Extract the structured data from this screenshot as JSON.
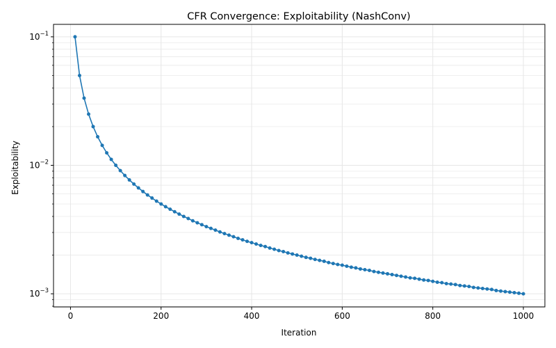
{
  "chart_data": {
    "type": "line",
    "title": "CFR Convergence: Exploitability (NashConv)",
    "xlabel": "Iteration",
    "ylabel": "Exploitability",
    "xlim": [
      -37.5,
      1047.5
    ],
    "ylim": [
      0.00079,
      0.125
    ],
    "yscale": "log",
    "grid": true,
    "legend": "none",
    "x_ticks": [
      0,
      200,
      400,
      600,
      800,
      1000
    ],
    "x_tick_labels": [
      "0",
      "200",
      "400",
      "600",
      "800",
      "1000"
    ],
    "y_ticks": [
      0.1,
      0.01,
      0.001
    ],
    "y_tick_labels": [
      {
        "base": "10",
        "exp": "−1"
      },
      {
        "base": "10",
        "exp": "−2"
      },
      {
        "base": "10",
        "exp": "−3"
      }
    ],
    "colors": {
      "line": "#1f77b4",
      "grid": "#e6e6e6",
      "axes": "#000000"
    },
    "series": [
      {
        "marker": "circle",
        "x": [
          10,
          20,
          30,
          40,
          50,
          60,
          70,
          80,
          90,
          100,
          110,
          120,
          130,
          140,
          150,
          160,
          170,
          180,
          190,
          200,
          210,
          220,
          230,
          240,
          250,
          260,
          270,
          280,
          290,
          300,
          310,
          320,
          330,
          340,
          350,
          360,
          370,
          380,
          390,
          400,
          410,
          420,
          430,
          440,
          450,
          460,
          470,
          480,
          490,
          500,
          510,
          520,
          530,
          540,
          550,
          560,
          570,
          580,
          590,
          600,
          610,
          620,
          630,
          640,
          650,
          660,
          670,
          680,
          690,
          700,
          710,
          720,
          730,
          740,
          750,
          760,
          770,
          780,
          790,
          800,
          810,
          820,
          830,
          840,
          850,
          860,
          870,
          880,
          890,
          900,
          910,
          920,
          930,
          940,
          950,
          960,
          970,
          980,
          990,
          1000
        ],
        "values": [
          0.1,
          0.05,
          0.03333,
          0.025,
          0.02,
          0.01667,
          0.01429,
          0.0125,
          0.01111,
          0.01,
          0.00909,
          0.00833,
          0.00769,
          0.00714,
          0.00667,
          0.00625,
          0.00588,
          0.00556,
          0.00526,
          0.005,
          0.00476,
          0.00455,
          0.00435,
          0.00417,
          0.004,
          0.00385,
          0.0037,
          0.00357,
          0.00345,
          0.00333,
          0.00323,
          0.00313,
          0.00303,
          0.00294,
          0.00286,
          0.00278,
          0.0027,
          0.00263,
          0.00256,
          0.0025,
          0.00244,
          0.00238,
          0.00233,
          0.00227,
          0.00222,
          0.00217,
          0.00213,
          0.00208,
          0.00204,
          0.002,
          0.00196,
          0.00192,
          0.00189,
          0.00185,
          0.00182,
          0.00179,
          0.00175,
          0.00172,
          0.00169,
          0.00167,
          0.00164,
          0.00161,
          0.00159,
          0.00156,
          0.00154,
          0.00152,
          0.00149,
          0.00147,
          0.00145,
          0.00143,
          0.00141,
          0.00139,
          0.00137,
          0.00135,
          0.00133,
          0.00132,
          0.0013,
          0.00128,
          0.00127,
          0.00125,
          0.00123,
          0.00122,
          0.0012,
          0.00119,
          0.00118,
          0.00116,
          0.00115,
          0.00114,
          0.00112,
          0.00111,
          0.0011,
          0.00109,
          0.00108,
          0.00106,
          0.00105,
          0.00104,
          0.00103,
          0.00102,
          0.00101,
          0.001
        ]
      }
    ]
  }
}
